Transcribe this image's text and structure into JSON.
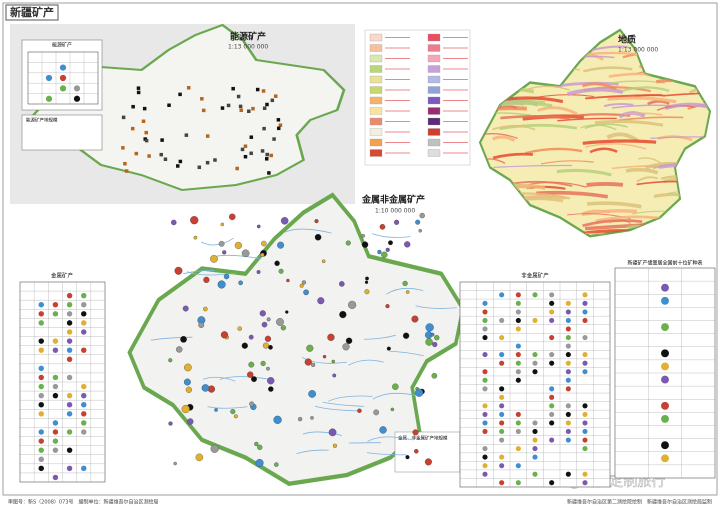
{
  "header": {
    "title": "新疆矿产"
  },
  "maps": [
    {
      "title": "能源矿产",
      "scale": "1:13 000 000"
    },
    {
      "title": "地质",
      "scale": "1:13 000 000"
    },
    {
      "title": "金属非金属矿产",
      "scale": "1:10 000 000"
    }
  ],
  "legends": {
    "energy": "能源矿产",
    "energy_size": "能源矿产地规模",
    "metal": "金属矿产",
    "nonmetal": "非金属矿产",
    "rank": "新疆矿产储量居全国前十位矿种表",
    "metal_size": "金属、非金属矿产地规模"
  },
  "watermark": "知乎 @新疆定制旅行",
  "footer": {
    "left": "审图号：新S（2008）073号　编制单位：新疆维吾尔自治区测绘局",
    "right": "新疆维吾尔自治区第二测绘院绘制　新疆维吾尔自治区测绘局监制"
  }
}
